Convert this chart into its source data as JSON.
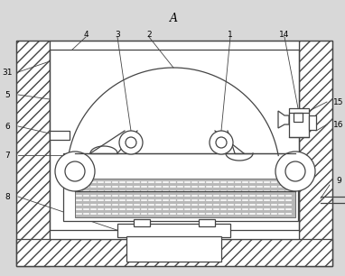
{
  "title": "A",
  "bg_color": "#d8d8d8",
  "line_color": "#444444",
  "wall_hatch": "///",
  "figsize": [
    3.82,
    3.06
  ],
  "dpi": 100,
  "labels_left": [
    "31",
    "5",
    "6",
    "7",
    "8"
  ],
  "labels_right": [
    "15",
    "16",
    "9"
  ],
  "labels_top": [
    "4",
    "3",
    "2",
    "1",
    "14"
  ]
}
